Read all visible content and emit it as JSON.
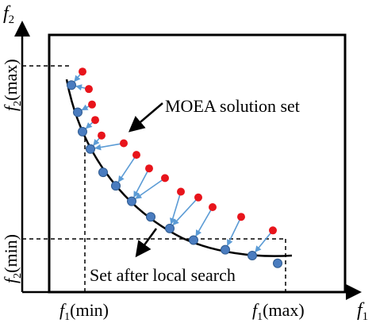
{
  "axes": {
    "x_var": "f",
    "x_sub": "1",
    "y_var": "f",
    "y_sub": "2"
  },
  "ticks": {
    "x_min": {
      "var": "f",
      "sub": "1",
      "suffix": "(min)"
    },
    "x_max": {
      "var": "f",
      "sub": "1",
      "suffix": "(max)"
    },
    "y_max": {
      "var": "f",
      "sub": "2",
      "suffix": "(max)"
    },
    "y_min": {
      "var": "f",
      "sub": "2",
      "suffix": "(min)"
    }
  },
  "annotations": {
    "moea": "MOEA solution set",
    "local": "Set after local search"
  },
  "colors": {
    "moea_point": "#e8141b",
    "local_point": "#4a7cbf",
    "arrow": "#5b9bd5",
    "line": "#000000"
  },
  "chart_data": {
    "type": "scatter",
    "series": [
      {
        "name": "MOEA solution set",
        "points": [
          [
            10,
            95
          ],
          [
            14,
            86
          ],
          [
            16,
            78
          ],
          [
            18,
            70
          ],
          [
            22,
            62
          ],
          [
            36,
            58
          ],
          [
            44,
            52
          ],
          [
            52,
            45
          ],
          [
            62,
            40
          ],
          [
            72,
            33
          ],
          [
            83,
            30
          ],
          [
            92,
            25
          ],
          [
            110,
            20
          ],
          [
            130,
            13
          ]
        ]
      },
      {
        "name": "Set after local search",
        "points": [
          [
            3,
            88
          ],
          [
            7,
            74
          ],
          [
            10,
            64
          ],
          [
            15,
            55
          ],
          [
            23,
            43
          ],
          [
            31,
            36
          ],
          [
            41,
            28
          ],
          [
            53,
            20
          ],
          [
            65,
            14
          ],
          [
            80,
            8
          ],
          [
            100,
            3
          ],
          [
            117,
            0
          ],
          [
            133,
            -4
          ]
        ]
      }
    ]
  }
}
